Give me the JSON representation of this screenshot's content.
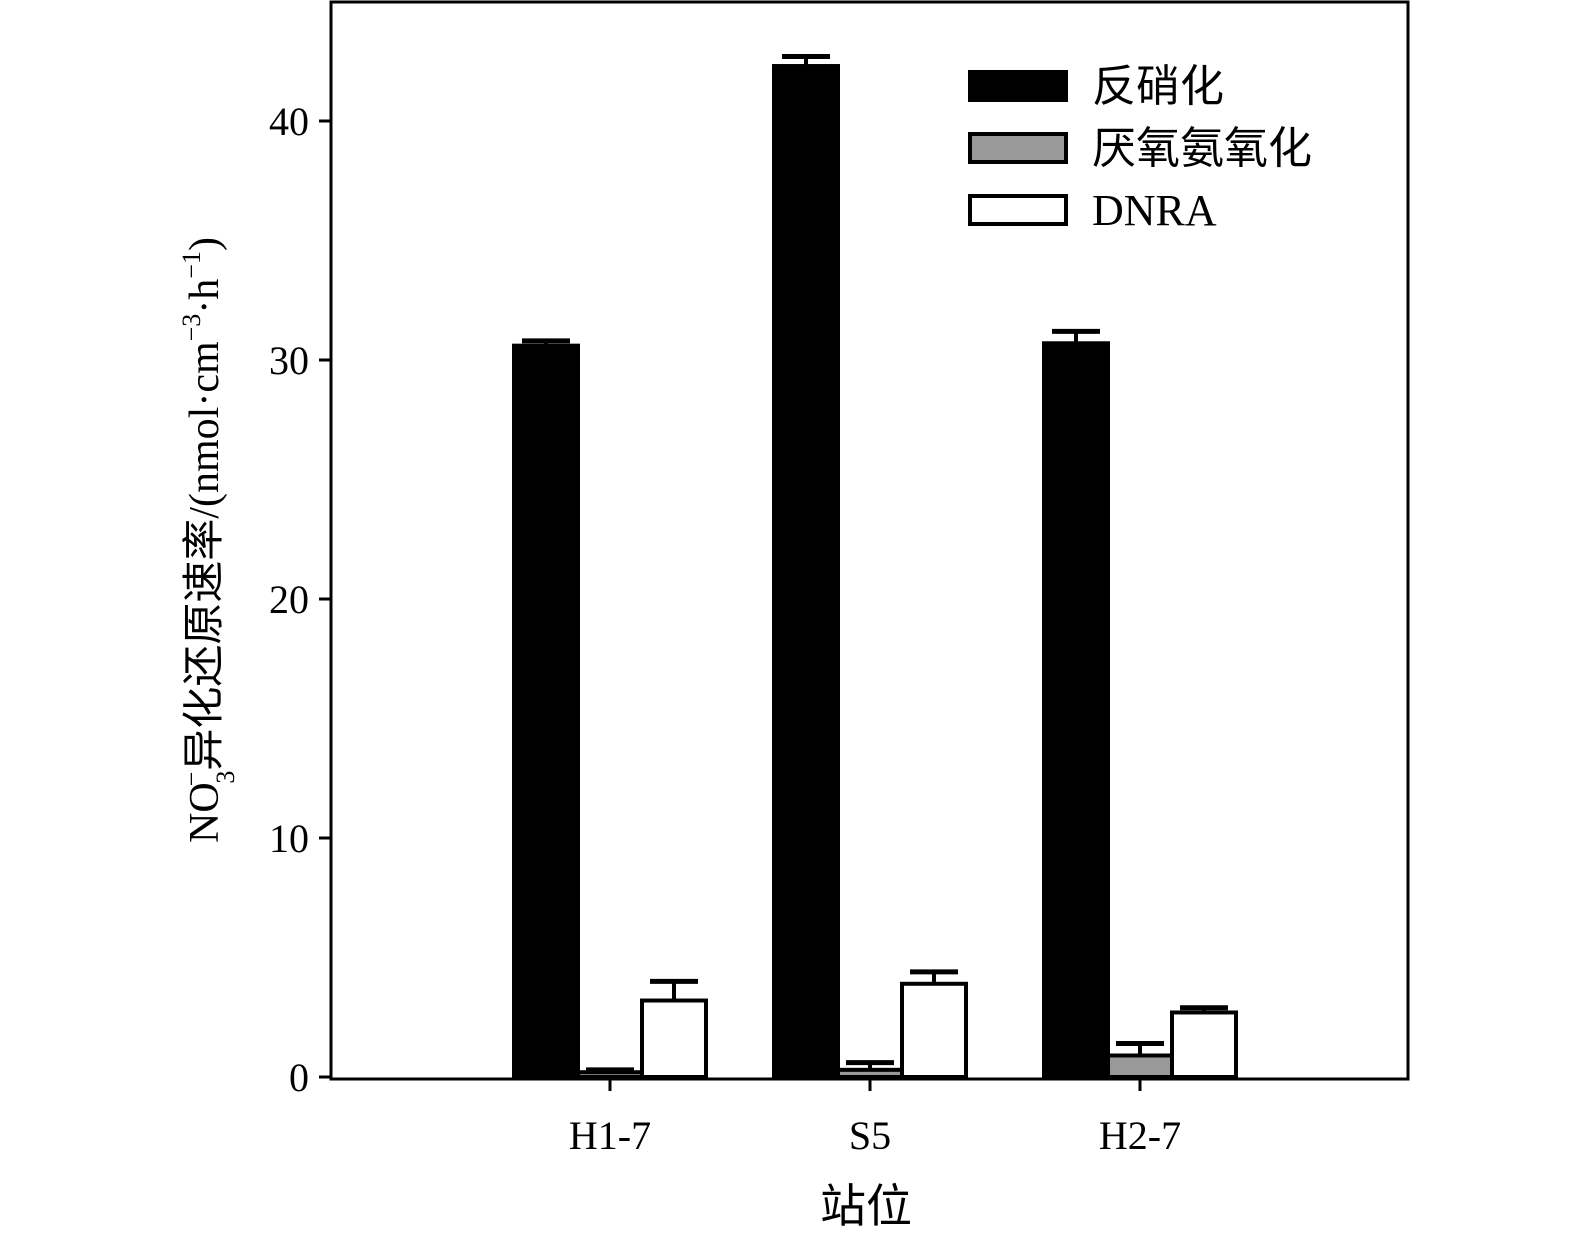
{
  "chart_data": {
    "type": "bar",
    "categories": [
      "H1-7",
      "S5",
      "H2-7"
    ],
    "series": [
      {
        "name": "反硝化",
        "values": [
          30.6,
          42.3,
          30.7
        ],
        "errors": [
          0.2,
          0.4,
          0.5
        ],
        "color": "#000000"
      },
      {
        "name": "厌氧氨氧化",
        "values": [
          0.2,
          0.3,
          0.9
        ],
        "errors": [
          0.1,
          0.3,
          0.5
        ],
        "color": "#999999"
      },
      {
        "name": "DNRA",
        "values": [
          3.2,
          3.9,
          2.7
        ],
        "errors": [
          0.8,
          0.5,
          0.2
        ],
        "color": "#ffffff"
      }
    ],
    "xlabel": "站位",
    "ylabel": {
      "main": "NO",
      "sub": "3",
      "sup": "−",
      "rest": "异化还原速率/(nmol·cm",
      "sup2": "−3",
      "mid": "·h",
      "sup3": "−1",
      "end": ")"
    },
    "ylim": [
      0,
      45
    ],
    "yticks": [
      0,
      10,
      20,
      30,
      40
    ],
    "legend_position": "top-right",
    "grid": false
  }
}
